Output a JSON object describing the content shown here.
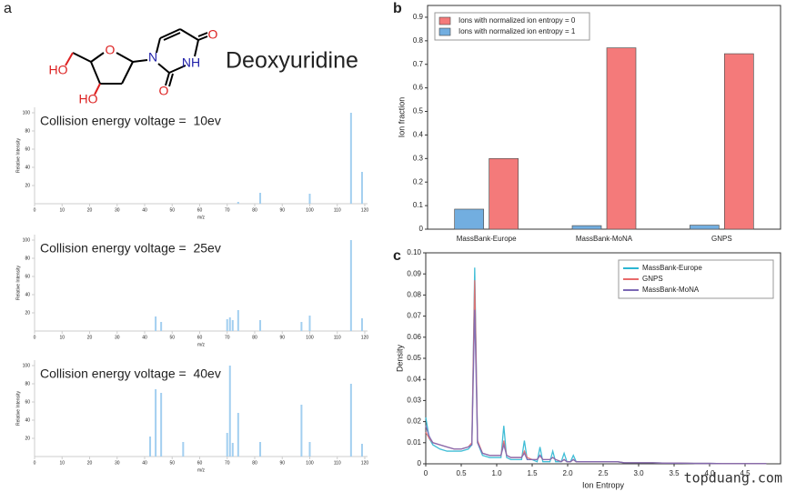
{
  "panels": [
    "a",
    "b",
    "c"
  ],
  "molecule": {
    "name": "Deoxyuridine",
    "atoms": [
      "O",
      "N",
      "NH",
      "O",
      "O",
      "HO",
      "HO"
    ]
  },
  "watermark": "topduang.com",
  "chart_data": [
    {
      "type": "bar",
      "annotation": "Collision energy voltage =  10ev",
      "x_label": "m/z",
      "y_label": "Relative Intensity",
      "x": [
        74,
        82,
        100,
        115,
        119
      ],
      "values": [
        2,
        12,
        11,
        100,
        35
      ],
      "color": "#a3cff0",
      "xlim": [
        0,
        121
      ],
      "ylim": [
        0,
        106
      ],
      "xticks": [
        0,
        10,
        20,
        30,
        40,
        50,
        60,
        70,
        80,
        90,
        100,
        110,
        120
      ],
      "yticks": [
        20,
        40,
        60,
        80,
        100
      ]
    },
    {
      "type": "bar",
      "annotation": "Collision energy voltage =  25ev",
      "x_label": "m/z",
      "y_label": "Relative Intensity",
      "x": [
        44,
        46,
        70,
        71,
        72,
        74,
        82,
        97,
        100,
        115,
        119
      ],
      "values": [
        16,
        10,
        13,
        15,
        12,
        23,
        12,
        10,
        17,
        100,
        14
      ],
      "color": "#a3cff0",
      "xlim": [
        0,
        121
      ],
      "ylim": [
        0,
        106
      ],
      "xticks": [
        0,
        10,
        20,
        30,
        40,
        50,
        60,
        70,
        80,
        90,
        100,
        110,
        120
      ],
      "yticks": [
        20,
        40,
        60,
        80,
        100
      ]
    },
    {
      "type": "bar",
      "annotation": "Collision energy voltage =  40ev",
      "x_label": "m/z",
      "y_label": "Relative Intensity",
      "x": [
        42,
        44,
        46,
        54,
        70,
        71,
        72,
        74,
        82,
        97,
        100,
        115,
        119
      ],
      "values": [
        22,
        74,
        70,
        16,
        26,
        100,
        15,
        48,
        16,
        57,
        16,
        80,
        14
      ],
      "color": "#a3cff0",
      "xlim": [
        0,
        121
      ],
      "ylim": [
        0,
        106
      ],
      "xticks": [
        0,
        10,
        20,
        30,
        40,
        50,
        60,
        70,
        80,
        90,
        100,
        110,
        120
      ],
      "yticks": [
        20,
        40,
        60,
        80,
        100
      ]
    },
    {
      "type": "bar",
      "y_label": "Ion fraction",
      "legend": "top-left",
      "categories": [
        "MassBank-Europe",
        "MassBank-MoNA",
        "GNPS"
      ],
      "series": [
        {
          "name": "Ions with normalized ion entropy = 0",
          "color": "#f47a7a",
          "values": [
            0.3,
            0.77,
            0.745
          ]
        },
        {
          "name": "Ions with normalized ion entropy = 1",
          "color": "#72aee0",
          "values": [
            0.085,
            0.015,
            0.017
          ]
        }
      ],
      "ylim": [
        0,
        0.95
      ],
      "yticks": [
        0,
        0.1,
        0.2,
        0.3,
        0.4,
        0.5,
        0.6,
        0.7,
        0.8,
        0.9
      ]
    },
    {
      "type": "line",
      "x_label": "Ion Entropy",
      "y_label": "Density",
      "legend": "top-right",
      "x": [
        0,
        0.05,
        0.1,
        0.2,
        0.3,
        0.4,
        0.5,
        0.6,
        0.65,
        0.69,
        0.73,
        0.8,
        0.9,
        1.0,
        1.06,
        1.1,
        1.14,
        1.2,
        1.3,
        1.35,
        1.39,
        1.43,
        1.5,
        1.57,
        1.61,
        1.65,
        1.75,
        1.79,
        1.83,
        1.91,
        1.95,
        1.99,
        2.04,
        2.08,
        2.12,
        2.2,
        2.3,
        2.4,
        2.5,
        2.6,
        2.7,
        2.8,
        3.0,
        3.2,
        3.4,
        3.6,
        3.8,
        4.0,
        4.2,
        4.5,
        4.8
      ],
      "series": [
        {
          "name": "MassBank-Europe",
          "color": "#2bb6d2",
          "values": [
            0.022,
            0.012,
            0.009,
            0.007,
            0.006,
            0.006,
            0.006,
            0.007,
            0.009,
            0.093,
            0.01,
            0.004,
            0.003,
            0.003,
            0.003,
            0.018,
            0.003,
            0.002,
            0.002,
            0.002,
            0.011,
            0.002,
            0.002,
            0.001,
            0.008,
            0.001,
            0.001,
            0.006,
            0.001,
            0.001,
            0.005,
            0.001,
            0.001,
            0.004,
            0.001,
            0.001,
            0.001,
            0.001,
            0.001,
            0.001,
            0.001,
            0.0005,
            0.0005,
            0.0005,
            0.0003,
            0.0003,
            0.0002,
            0.0002,
            0.0001,
            0.0001,
            0.0001
          ]
        },
        {
          "name": "GNPS",
          "color": "#e86a6a",
          "values": [
            0.015,
            0.012,
            0.01,
            0.009,
            0.008,
            0.007,
            0.007,
            0.008,
            0.01,
            0.087,
            0.011,
            0.005,
            0.004,
            0.004,
            0.004,
            0.011,
            0.004,
            0.003,
            0.003,
            0.003,
            0.006,
            0.003,
            0.002,
            0.002,
            0.004,
            0.002,
            0.002,
            0.003,
            0.002,
            0.001,
            0.002,
            0.001,
            0.001,
            0.002,
            0.001,
            0.001,
            0.001,
            0.001,
            0.001,
            0.001,
            0.001,
            0.0005,
            0.0005,
            0.0005,
            0.0003,
            0.0003,
            0.0002,
            0.0002,
            0.0001,
            0.0001,
            0.0001
          ]
        },
        {
          "name": "MassBank-MoNA",
          "color": "#7b68b5",
          "values": [
            0.018,
            0.013,
            0.01,
            0.009,
            0.008,
            0.007,
            0.007,
            0.008,
            0.009,
            0.073,
            0.01,
            0.005,
            0.004,
            0.004,
            0.004,
            0.009,
            0.004,
            0.003,
            0.003,
            0.003,
            0.005,
            0.002,
            0.002,
            0.002,
            0.004,
            0.002,
            0.002,
            0.003,
            0.002,
            0.001,
            0.002,
            0.001,
            0.001,
            0.002,
            0.001,
            0.001,
            0.001,
            0.001,
            0.001,
            0.001,
            0.001,
            0.0005,
            0.0005,
            0.0005,
            0.0003,
            0.0003,
            0.0002,
            0.0002,
            0.0001,
            0.0001,
            0.0001
          ]
        }
      ],
      "xlim": [
        0,
        5
      ],
      "ylim": [
        0,
        0.1
      ],
      "xticks": [
        0,
        0.5,
        {
          "value": 1,
          "label": "1.0"
        },
        1.5,
        {
          "value": 2,
          "label": "2.0"
        },
        2.5,
        {
          "value": 3,
          "label": "3.0"
        },
        3.5,
        {
          "value": 4,
          "label": "4.0"
        },
        4.5
      ],
      "yticks": [
        0,
        0.01,
        0.02,
        0.03,
        0.04,
        0.05,
        0.06,
        0.07,
        0.08,
        0.09,
        {
          "value": 0.1,
          "label": "0.10"
        }
      ]
    }
  ]
}
